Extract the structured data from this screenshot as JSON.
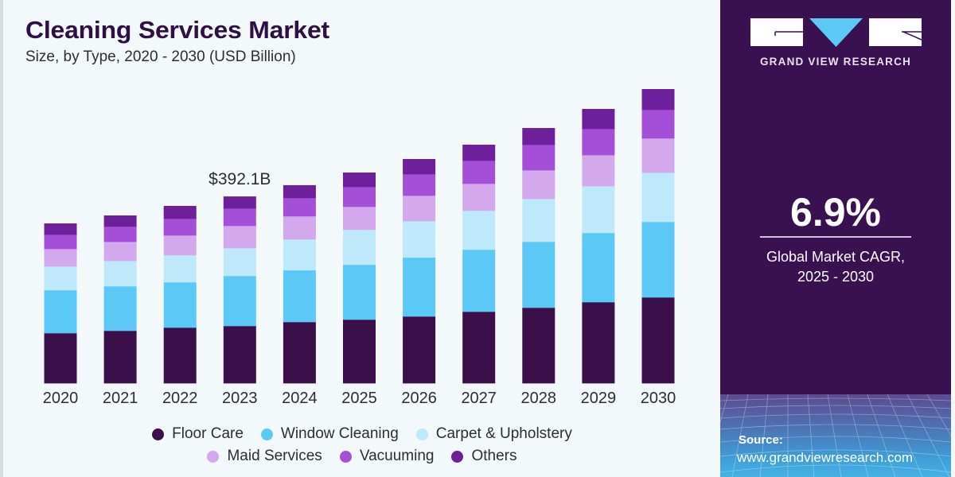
{
  "header": {
    "title": "Cleaning Services Market",
    "subtitle": "Size, by Type, 2020 - 2030 (USD Billion)"
  },
  "chart_data": {
    "type": "bar",
    "stacked": true,
    "title": "Cleaning Services Market",
    "subtitle": "Size, by Type, 2020 - 2030 (USD Billion)",
    "xlabel": "",
    "ylabel": "USD Billion",
    "ylim": [
      0,
      620
    ],
    "grid": false,
    "legend_position": "bottom",
    "categories": [
      "2020",
      "2021",
      "2022",
      "2023",
      "2024",
      "2025",
      "2026",
      "2027",
      "2028",
      "2029",
      "2030"
    ],
    "series": [
      {
        "name": "Floor Care",
        "color": "#3a0f4a",
        "values": [
          105.1,
          110.1,
          116.8,
          120.1,
          128.5,
          133.5,
          140.2,
          150.2,
          158.5,
          170.2,
          180.2
        ]
      },
      {
        "name": "Window Cleaning",
        "color": "#5bc8f5",
        "values": [
          90.1,
          93.4,
          95.1,
          105.1,
          108.5,
          115.1,
          123.5,
          130.1,
          138.5,
          145.2,
          158.5
        ]
      },
      {
        "name": "Carpet & Upholstery",
        "color": "#bde9fa",
        "values": [
          50.1,
          53.4,
          56.7,
          58.4,
          65.1,
          73.4,
          76.8,
          81.8,
          90.1,
          98.4,
          103.4
        ]
      },
      {
        "name": "Maid Services",
        "color": "#d3a8ec",
        "values": [
          36.7,
          40.0,
          41.7,
          46.7,
          48.4,
          48.4,
          53.4,
          56.7,
          60.1,
          65.1,
          71.7
        ]
      },
      {
        "name": "Vacuuming",
        "color": "#a54fd8",
        "values": [
          30.0,
          31.7,
          35.0,
          36.7,
          38.4,
          41.7,
          45.0,
          48.4,
          53.4,
          55.1,
          60.1
        ]
      },
      {
        "name": "Others",
        "color": "#6e1f9c",
        "values": [
          23.4,
          23.4,
          26.7,
          25.0,
          26.7,
          30.0,
          31.7,
          33.4,
          35.0,
          41.7,
          43.4
        ]
      }
    ],
    "annotations": [
      {
        "category": "2023",
        "text": "$392.1B"
      }
    ]
  },
  "legend": {
    "row1": [
      {
        "label": "Floor Care",
        "color": "#3a0f4a"
      },
      {
        "label": "Window Cleaning",
        "color": "#5bc8f5"
      },
      {
        "label": "Carpet & Upholstery",
        "color": "#bde9fa"
      }
    ],
    "row2": [
      {
        "label": "Maid Services",
        "color": "#d3a8ec"
      },
      {
        "label": "Vacuuming",
        "color": "#a54fd8"
      },
      {
        "label": "Others",
        "color": "#6e1f9c"
      }
    ]
  },
  "panel": {
    "brand": "GRAND VIEW RESEARCH",
    "cagr_value": "6.9%",
    "cagr_label_line1": "Global Market CAGR,",
    "cagr_label_line2": "2025 - 2030",
    "source_label": "Source:",
    "source_url": "www.grandviewresearch.com",
    "colors": {
      "background": "#3a1150",
      "accent": "#5bc8f5"
    }
  }
}
